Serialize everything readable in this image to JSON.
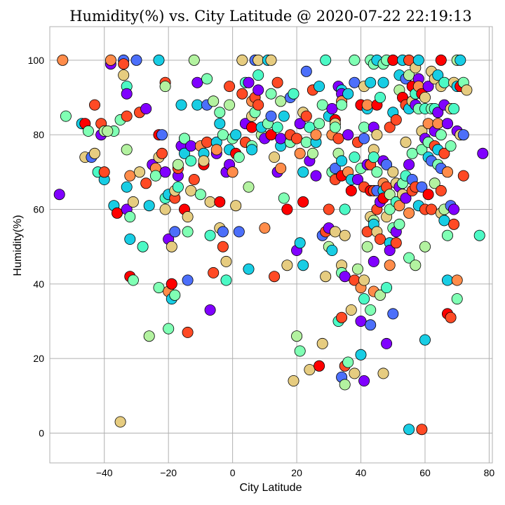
{
  "chart_data": {
    "type": "scatter",
    "title": "Humidity(%) vs. City Latitude @ 2020-07-22 22:19:13",
    "xlabel": "City Latitude",
    "ylabel": "Humidity(%)",
    "xlim": [
      -57,
      81
    ],
    "ylim": [
      -8,
      109
    ],
    "xticks": [
      -40,
      -20,
      0,
      20,
      40,
      60,
      80
    ],
    "yticks": [
      0,
      20,
      40,
      60,
      80,
      100
    ],
    "grid": true,
    "colormap": "rainbow",
    "colors": [
      "#8000ff",
      "#4c6ffa",
      "#18cde4",
      "#4cf9c5",
      "#80ffb4",
      "#b3f2a0",
      "#e6cc80",
      "#ff8c4a",
      "#ff4a25",
      "#ff0000"
    ],
    "points": [
      [
        -54,
        64
      ],
      [
        -53,
        100
      ],
      [
        -52,
        85
      ],
      [
        -47,
        83
      ],
      [
        -46,
        83
      ],
      [
        -46,
        74
      ],
      [
        -45,
        81
      ],
      [
        -44,
        74
      ],
      [
        -43,
        88
      ],
      [
        -43,
        75
      ],
      [
        -42,
        70
      ],
      [
        -41,
        80
      ],
      [
        -41,
        83
      ],
      [
        -40,
        81
      ],
      [
        -40,
        68
      ],
      [
        -38,
        99
      ],
      [
        -38,
        100
      ],
      [
        -37,
        81
      ],
      [
        -37,
        61
      ],
      [
        -36,
        59
      ],
      [
        -35,
        3
      ],
      [
        -35,
        84
      ],
      [
        -34,
        100
      ],
      [
        -34,
        99
      ],
      [
        -34,
        96
      ],
      [
        -33,
        93
      ],
      [
        -33,
        91
      ],
      [
        -33,
        85
      ],
      [
        -33,
        76
      ],
      [
        -33,
        66
      ],
      [
        -33,
        60
      ],
      [
        -32,
        69
      ],
      [
        -32,
        58
      ],
      [
        -32,
        52
      ],
      [
        -32,
        42
      ],
      [
        -31,
        62
      ],
      [
        -31,
        41
      ],
      [
        -30,
        100
      ],
      [
        -29,
        86
      ],
      [
        -29,
        70
      ],
      [
        -28,
        50
      ],
      [
        -27,
        87
      ],
      [
        -27,
        67
      ],
      [
        -26,
        26
      ],
      [
        -26,
        61
      ],
      [
        -25,
        72
      ],
      [
        -24,
        71
      ],
      [
        -24,
        69
      ],
      [
        -23,
        100
      ],
      [
        -23,
        80
      ],
      [
        -23,
        74
      ],
      [
        -23,
        39
      ],
      [
        -22,
        80
      ],
      [
        -22,
        75
      ],
      [
        -21,
        60
      ],
      [
        -21,
        63
      ],
      [
        -21,
        70
      ],
      [
        -21,
        94
      ],
      [
        -21,
        93
      ],
      [
        -20,
        64
      ],
      [
        -20,
        52
      ],
      [
        -20,
        38
      ],
      [
        -20,
        28
      ],
      [
        -19,
        36
      ],
      [
        -19,
        40
      ],
      [
        -19,
        50
      ],
      [
        -18,
        37
      ],
      [
        -18,
        54
      ],
      [
        -18,
        63
      ],
      [
        -18,
        65
      ],
      [
        -17,
        66
      ],
      [
        -17,
        69
      ],
      [
        -17,
        71
      ],
      [
        -17,
        72
      ],
      [
        -16,
        88
      ],
      [
        -16,
        77
      ],
      [
        -15,
        79
      ],
      [
        -15,
        79
      ],
      [
        -15,
        75
      ],
      [
        -15,
        60
      ],
      [
        -14,
        58
      ],
      [
        -14,
        54
      ],
      [
        -14,
        41
      ],
      [
        -14,
        27
      ],
      [
        -13,
        65
      ],
      [
        -13,
        73
      ],
      [
        -13,
        77
      ],
      [
        -12,
        68
      ],
      [
        -12,
        100
      ],
      [
        -11,
        88
      ],
      [
        -11,
        94
      ],
      [
        -10,
        77
      ],
      [
        -10,
        64
      ],
      [
        -9,
        75
      ],
      [
        -9,
        72
      ],
      [
        -9,
        73
      ],
      [
        -8,
        95
      ],
      [
        -8,
        88
      ],
      [
        -8,
        78
      ],
      [
        -7,
        62
      ],
      [
        -7,
        53
      ],
      [
        -7,
        33
      ],
      [
        -6,
        43
      ],
      [
        -6,
        89
      ],
      [
        -5,
        78
      ],
      [
        -5,
        75
      ],
      [
        -5,
        76
      ],
      [
        -4,
        86
      ],
      [
        -4,
        83
      ],
      [
        -4,
        62
      ],
      [
        -4,
        55
      ],
      [
        -3,
        80
      ],
      [
        -3,
        54
      ],
      [
        -3,
        50
      ],
      [
        -2,
        46
      ],
      [
        -2,
        41
      ],
      [
        -2,
        70
      ],
      [
        -1,
        93
      ],
      [
        -1,
        88
      ],
      [
        -1,
        76
      ],
      [
        -1,
        72
      ],
      [
        0,
        70
      ],
      [
        0,
        79
      ],
      [
        1,
        80
      ],
      [
        1,
        75
      ],
      [
        1,
        61
      ],
      [
        2,
        74
      ],
      [
        2,
        54
      ],
      [
        3,
        91
      ],
      [
        3,
        100
      ],
      [
        4,
        94
      ],
      [
        4,
        83
      ],
      [
        4,
        78
      ],
      [
        5,
        66
      ],
      [
        5,
        44
      ],
      [
        5,
        94
      ],
      [
        6,
        89
      ],
      [
        6,
        77
      ],
      [
        6,
        76
      ],
      [
        6,
        82
      ],
      [
        6,
        85
      ],
      [
        7,
        86
      ],
      [
        7,
        100
      ],
      [
        7,
        90
      ],
      [
        8,
        100
      ],
      [
        8,
        96
      ],
      [
        8,
        92
      ],
      [
        8,
        88
      ],
      [
        9,
        80
      ],
      [
        9,
        82
      ],
      [
        10,
        79
      ],
      [
        10,
        55
      ],
      [
        11,
        83
      ],
      [
        11,
        100
      ],
      [
        12,
        80
      ],
      [
        12,
        100
      ],
      [
        12,
        91
      ],
      [
        12,
        85
      ],
      [
        13,
        42
      ],
      [
        13,
        74
      ],
      [
        14,
        82
      ],
      [
        14,
        70
      ],
      [
        14,
        94
      ],
      [
        15,
        89
      ],
      [
        15,
        77
      ],
      [
        15,
        79
      ],
      [
        15,
        71
      ],
      [
        16,
        63
      ],
      [
        16,
        85
      ],
      [
        17,
        60
      ],
      [
        17,
        45
      ],
      [
        18,
        78
      ],
      [
        18,
        90
      ],
      [
        18,
        80
      ],
      [
        19,
        14
      ],
      [
        19,
        91
      ],
      [
        20,
        49
      ],
      [
        20,
        79
      ],
      [
        20,
        26
      ],
      [
        21,
        51
      ],
      [
        21,
        83
      ],
      [
        21,
        75
      ],
      [
        21,
        22
      ],
      [
        22,
        70
      ],
      [
        22,
        62
      ],
      [
        22,
        86
      ],
      [
        23,
        78
      ],
      [
        23,
        97
      ],
      [
        23,
        85
      ],
      [
        24,
        17
      ],
      [
        24,
        82
      ],
      [
        24,
        73
      ],
      [
        25,
        92
      ],
      [
        25,
        75
      ],
      [
        26,
        78
      ],
      [
        26,
        69
      ],
      [
        26,
        80
      ],
      [
        27,
        83
      ],
      [
        27,
        93
      ],
      [
        27,
        18
      ],
      [
        28,
        24
      ],
      [
        28,
        88
      ],
      [
        28,
        53
      ],
      [
        29,
        54
      ],
      [
        29,
        42
      ],
      [
        29,
        100
      ],
      [
        30,
        55
      ],
      [
        30,
        60
      ],
      [
        30,
        50
      ],
      [
        30,
        85
      ],
      [
        31,
        87
      ],
      [
        31,
        80
      ],
      [
        31,
        70
      ],
      [
        31,
        49
      ],
      [
        32,
        84
      ],
      [
        32,
        83
      ],
      [
        32,
        82
      ],
      [
        32,
        71
      ],
      [
        32,
        68
      ],
      [
        32,
        54
      ],
      [
        33,
        30
      ],
      [
        33,
        93
      ],
      [
        33,
        79
      ],
      [
        33,
        75
      ],
      [
        34,
        92
      ],
      [
        34,
        91
      ],
      [
        34,
        89
      ],
      [
        34,
        88
      ],
      [
        34,
        73
      ],
      [
        34,
        69
      ],
      [
        34,
        45
      ],
      [
        34,
        43
      ],
      [
        34,
        15
      ],
      [
        34,
        31
      ],
      [
        35,
        53
      ],
      [
        35,
        60
      ],
      [
        35,
        42
      ],
      [
        35,
        18
      ],
      [
        35,
        13
      ],
      [
        36,
        91
      ],
      [
        36,
        80
      ],
      [
        36,
        70
      ],
      [
        36,
        19
      ],
      [
        37,
        68
      ],
      [
        37,
        65
      ],
      [
        37,
        33
      ],
      [
        38,
        100
      ],
      [
        38,
        94
      ],
      [
        38,
        41
      ],
      [
        38,
        16
      ],
      [
        38,
        74
      ],
      [
        39,
        68
      ],
      [
        39,
        78
      ],
      [
        39,
        44
      ],
      [
        40,
        21
      ],
      [
        40,
        30
      ],
      [
        40,
        39
      ],
      [
        40,
        71
      ],
      [
        40,
        88
      ],
      [
        40,
        88
      ],
      [
        41,
        93
      ],
      [
        41,
        82
      ],
      [
        41,
        79
      ],
      [
        41,
        66
      ],
      [
        41,
        41
      ],
      [
        41,
        36
      ],
      [
        41,
        14
      ],
      [
        42,
        54
      ],
      [
        42,
        50
      ],
      [
        42,
        87
      ],
      [
        42,
        72
      ],
      [
        42,
        88
      ],
      [
        43,
        100
      ],
      [
        43,
        94
      ],
      [
        43,
        65
      ],
      [
        43,
        58
      ],
      [
        43,
        33
      ],
      [
        43,
        29
      ],
      [
        43,
        72
      ],
      [
        44,
        76
      ],
      [
        44,
        74
      ],
      [
        44,
        82
      ],
      [
        44,
        65
      ],
      [
        44,
        57
      ],
      [
        44,
        56
      ],
      [
        44,
        46
      ],
      [
        44,
        38
      ],
      [
        44,
        99
      ],
      [
        45,
        100
      ],
      [
        45,
        88
      ],
      [
        45,
        80
      ],
      [
        45,
        70
      ],
      [
        45,
        65
      ],
      [
        45,
        60
      ],
      [
        45,
        54
      ],
      [
        46,
        90
      ],
      [
        46,
        62
      ],
      [
        46,
        52
      ],
      [
        46,
        37
      ],
      [
        47,
        94
      ],
      [
        47,
        73
      ],
      [
        47,
        67
      ],
      [
        47,
        99
      ],
      [
        47,
        65
      ],
      [
        47,
        63
      ],
      [
        47,
        16
      ],
      [
        48,
        100
      ],
      [
        48,
        72
      ],
      [
        48,
        66
      ],
      [
        48,
        58
      ],
      [
        48,
        39
      ],
      [
        48,
        24
      ],
      [
        49,
        82
      ],
      [
        49,
        64
      ],
      [
        49,
        51
      ],
      [
        49,
        49
      ],
      [
        49,
        45
      ],
      [
        49,
        60
      ],
      [
        50,
        86
      ],
      [
        50,
        100
      ],
      [
        50,
        70
      ],
      [
        50,
        55
      ],
      [
        50,
        32
      ],
      [
        51,
        84
      ],
      [
        51,
        67
      ],
      [
        51,
        62
      ],
      [
        51,
        54
      ],
      [
        51,
        51
      ],
      [
        52,
        92
      ],
      [
        52,
        96
      ],
      [
        52,
        66
      ],
      [
        52,
        61
      ],
      [
        52,
        56
      ],
      [
        53,
        100
      ],
      [
        53,
        90
      ],
      [
        53,
        64
      ],
      [
        53,
        67
      ],
      [
        54,
        95
      ],
      [
        54,
        88
      ],
      [
        54,
        78
      ],
      [
        54,
        69
      ],
      [
        54,
        63
      ],
      [
        55,
        100
      ],
      [
        55,
        96
      ],
      [
        55,
        87
      ],
      [
        55,
        72
      ],
      [
        55,
        59
      ],
      [
        55,
        47
      ],
      [
        55,
        1
      ],
      [
        56,
        93
      ],
      [
        56,
        89
      ],
      [
        56,
        75
      ],
      [
        56,
        68
      ],
      [
        56,
        65
      ],
      [
        57,
        98
      ],
      [
        57,
        91
      ],
      [
        57,
        88
      ],
      [
        57,
        66
      ],
      [
        57,
        45
      ],
      [
        58,
        100
      ],
      [
        58,
        95
      ],
      [
        58,
        93
      ],
      [
        58,
        87
      ],
      [
        58,
        61
      ],
      [
        59,
        91
      ],
      [
        59,
        81
      ],
      [
        59,
        76
      ],
      [
        59,
        66
      ],
      [
        59,
        1
      ],
      [
        60,
        90
      ],
      [
        60,
        87
      ],
      [
        60,
        79
      ],
      [
        60,
        60
      ],
      [
        60,
        50
      ],
      [
        60,
        25
      ],
      [
        61,
        93
      ],
      [
        61,
        83
      ],
      [
        61,
        78
      ],
      [
        61,
        74
      ],
      [
        61,
        64
      ],
      [
        62,
        97
      ],
      [
        62,
        87
      ],
      [
        62,
        73
      ],
      [
        62,
        60
      ],
      [
        63,
        95
      ],
      [
        63,
        87
      ],
      [
        63,
        81
      ],
      [
        63,
        77
      ],
      [
        63,
        67
      ],
      [
        64,
        96
      ],
      [
        64,
        86
      ],
      [
        64,
        83
      ],
      [
        64,
        72
      ],
      [
        64,
        76
      ],
      [
        65,
        100
      ],
      [
        65,
        93
      ],
      [
        65,
        80
      ],
      [
        65,
        71
      ],
      [
        65,
        65
      ],
      [
        65,
        59
      ],
      [
        66,
        94
      ],
      [
        66,
        88
      ],
      [
        66,
        75
      ],
      [
        66,
        60
      ],
      [
        66,
        57
      ],
      [
        67,
        83
      ],
      [
        67,
        70
      ],
      [
        67,
        53
      ],
      [
        67,
        41
      ],
      [
        67,
        32
      ],
      [
        68,
        87
      ],
      [
        68,
        77
      ],
      [
        68,
        61
      ],
      [
        68,
        31
      ],
      [
        69,
        94
      ],
      [
        69,
        87
      ],
      [
        69,
        60
      ],
      [
        69,
        56
      ],
      [
        70,
        100
      ],
      [
        70,
        93
      ],
      [
        70,
        81
      ],
      [
        70,
        41
      ],
      [
        70,
        36
      ],
      [
        71,
        100
      ],
      [
        71,
        93
      ],
      [
        71,
        80
      ],
      [
        72,
        94
      ],
      [
        72,
        80
      ],
      [
        72,
        69
      ],
      [
        73,
        92
      ],
      [
        77,
        53
      ],
      [
        78,
        75
      ],
      [
        -40,
        70
      ],
      [
        -39,
        81
      ],
      [
        22,
        45
      ]
    ]
  }
}
